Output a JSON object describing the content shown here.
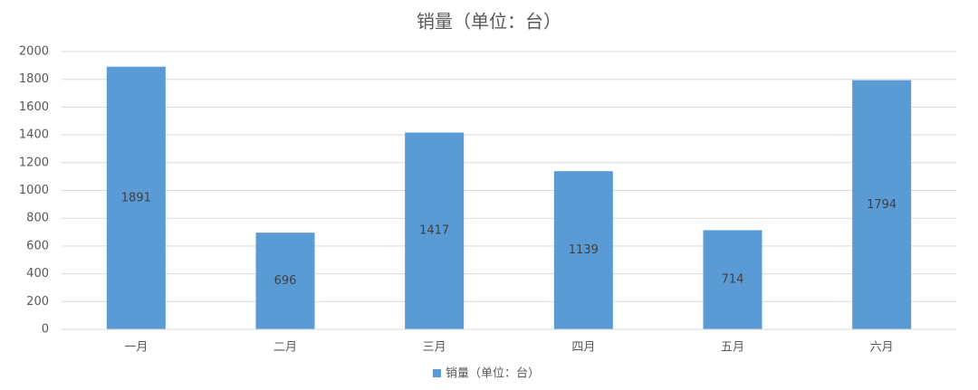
{
  "chart_data": {
    "type": "bar",
    "title": "销量（单位：台）",
    "categories": [
      "一月",
      "二月",
      "三月",
      "四月",
      "五月",
      "六月"
    ],
    "series": [
      {
        "name": "销量（单位：台）",
        "color": "#5b9bd5",
        "values": [
          1891,
          696,
          1417,
          1139,
          714,
          1794
        ]
      }
    ],
    "ylim": [
      0,
      2000
    ],
    "yticks": [
      0,
      200,
      400,
      600,
      800,
      1000,
      1200,
      1400,
      1600,
      1800,
      2000
    ],
    "grid": true,
    "legend": "bottom",
    "data_labels": true
  }
}
